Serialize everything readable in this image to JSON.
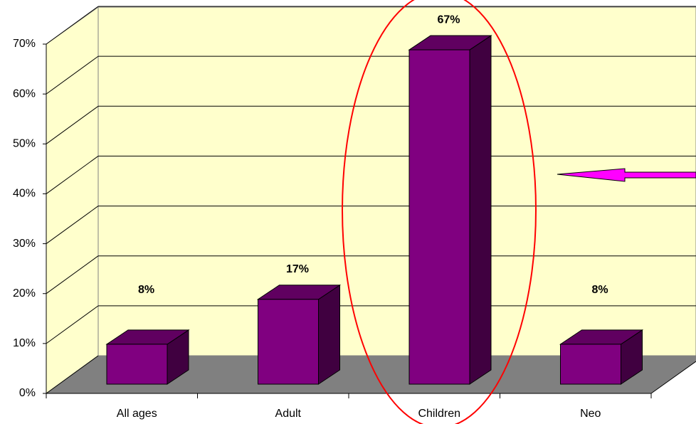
{
  "chart_data": {
    "type": "bar3d",
    "categories": [
      "All ages",
      "Adult",
      "Children",
      "Neo"
    ],
    "values": [
      8,
      17,
      67,
      8
    ],
    "value_labels": [
      "8%",
      "17%",
      "67%",
      "8%"
    ],
    "color": "#800080",
    "ylim": [
      0,
      70
    ],
    "yticks": [
      {
        "value": 0,
        "label": "0%"
      },
      {
        "value": 10,
        "label": "10%"
      },
      {
        "value": 20,
        "label": "20%"
      },
      {
        "value": 30,
        "label": "30%"
      },
      {
        "value": 40,
        "label": "40%"
      },
      {
        "value": 50,
        "label": "50%"
      },
      {
        "value": 60,
        "label": "60%"
      },
      {
        "value": 70,
        "label": "70%"
      }
    ],
    "grid": true
  }
}
